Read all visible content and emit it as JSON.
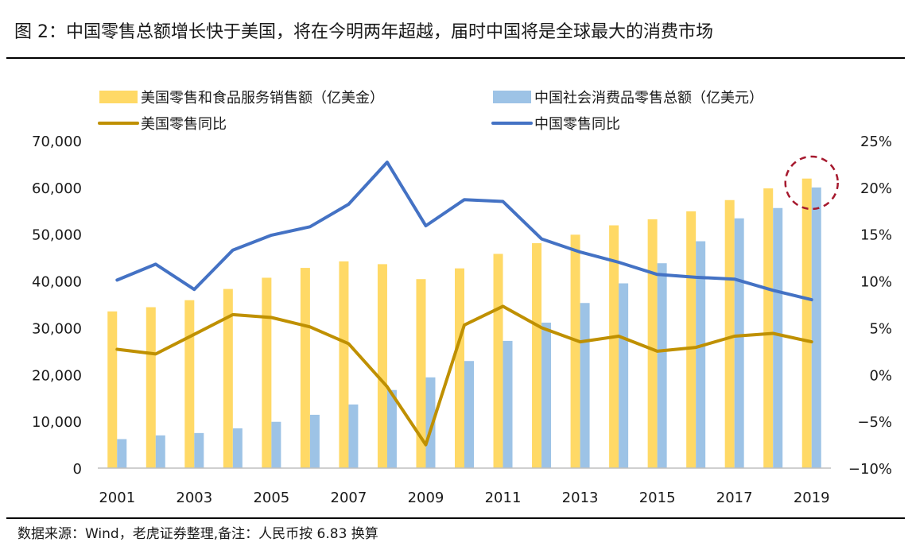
{
  "title": "图 2：中国零售总额增长快于美国，将在今明两年超越，届时中国将是全球最大的消费市场",
  "source": "数据来源：Wind，老虎证券整理,备注：人民币按 6.83 换算",
  "colors": {
    "us_bar": "#FFD966",
    "cn_bar": "#9DC3E6",
    "us_line": "#BF9000",
    "cn_line": "#4472C4",
    "highlight": "#A6192E"
  },
  "chart_data": {
    "type": "bar",
    "categories": [
      "2001",
      "2002",
      "2003",
      "2004",
      "2005",
      "2006",
      "2007",
      "2008",
      "2009",
      "2010",
      "2011",
      "2012",
      "2013",
      "2014",
      "2015",
      "2016",
      "2017",
      "2018",
      "2019"
    ],
    "x_tick_labels": [
      "2001",
      "2003",
      "2005",
      "2007",
      "2009",
      "2011",
      "2013",
      "2015",
      "2017",
      "2019"
    ],
    "series": [
      {
        "name": "美国零售和食品服务销售额（亿美金）",
        "type": "bar",
        "axis": "left",
        "values": [
          33500,
          34400,
          35900,
          38300,
          40700,
          42800,
          44200,
          43600,
          40400,
          42700,
          45800,
          48100,
          49900,
          51900,
          53200,
          54900,
          57300,
          59800,
          61900
        ]
      },
      {
        "name": "中国社会消费品零售总额（亿美元）",
        "type": "bar",
        "axis": "left",
        "values": [
          6200,
          7000,
          7500,
          8500,
          9900,
          11400,
          13600,
          16700,
          19400,
          22900,
          27200,
          31100,
          35300,
          39500,
          43800,
          48500,
          53400,
          55600,
          60000
        ]
      },
      {
        "name": "美国零售同比",
        "type": "line",
        "axis": "right",
        "values": [
          2.7,
          2.2,
          4.3,
          6.4,
          6.1,
          5.1,
          3.3,
          -1.3,
          -7.5,
          5.3,
          7.3,
          5.0,
          3.5,
          4.1,
          2.5,
          2.9,
          4.1,
          4.4,
          3.5
        ]
      },
      {
        "name": "中国零售同比",
        "type": "line",
        "axis": "right",
        "values": [
          10.1,
          11.8,
          9.1,
          13.3,
          14.9,
          15.8,
          18.2,
          22.7,
          15.9,
          18.7,
          18.5,
          14.5,
          13.1,
          12.0,
          10.7,
          10.4,
          10.2,
          9.0,
          8.0
        ]
      }
    ],
    "y_left": {
      "min": 0,
      "max": 70000,
      "ticks": [
        "0",
        "10,000",
        "20,000",
        "30,000",
        "40,000",
        "50,000",
        "60,000",
        "70,000"
      ]
    },
    "y_right": {
      "min": -10,
      "max": 25,
      "ticks": [
        "−10%",
        "−5%",
        "0%",
        "5%",
        "10%",
        "15%",
        "20%",
        "25%"
      ]
    },
    "grid": false,
    "legend_position": "top",
    "highlight": {
      "category": "2019",
      "shape": "dashed-circle"
    }
  }
}
